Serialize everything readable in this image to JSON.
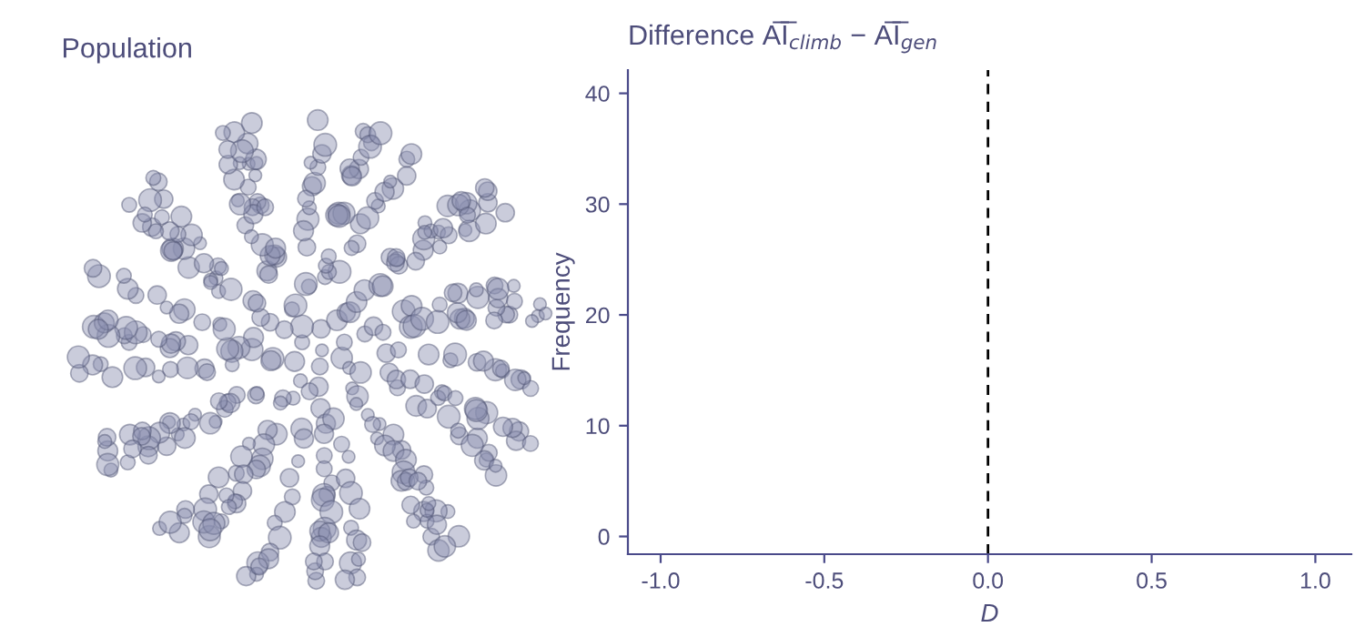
{
  "chart_data": [
    {
      "type": "other",
      "title": "Population"
    },
    {
      "type": "histogram",
      "title": "Difference A̅I̅$_{climb}$ − A̅I̅$_{gen}$",
      "xlabel": "D",
      "ylabel": "Frequency",
      "xlim": [
        -1.1,
        1.11
      ],
      "xticks": [
        {
          "value": -1.0,
          "label": "-1.0"
        },
        {
          "value": -0.5,
          "label": "-0.5"
        },
        {
          "value": 0,
          "label": "0.0"
        },
        {
          "value": 0.5,
          "label": "0.5"
        },
        {
          "value": 1.0,
          "label": "1.0"
        }
      ],
      "ylim": [
        -1.6,
        42.1
      ],
      "yticks": [
        0,
        10,
        20,
        30,
        40
      ],
      "ref_lines": [
        {
          "axis": "x",
          "value": 0,
          "color": "#000000",
          "line_style": "dashed"
        }
      ],
      "grid": false,
      "legend": false
    }
  ]
}
